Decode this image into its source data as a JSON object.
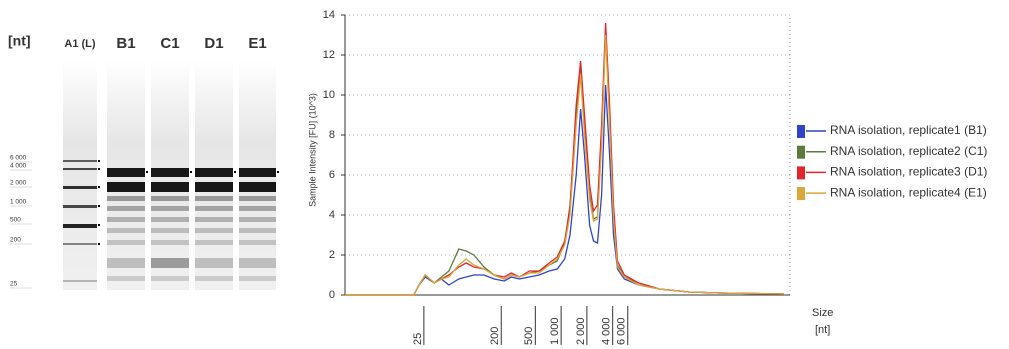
{
  "gel": {
    "unit": "[nt]",
    "lanes": [
      "A1 (L)",
      "B1",
      "C1",
      "D1",
      "E1"
    ],
    "ladder": [
      "6 000",
      "4 000",
      "2 000",
      "1 000",
      "500",
      "200",
      "25"
    ]
  },
  "chart_data": {
    "type": "line",
    "y_label": "Sample Intensity [FU] (10^3)",
    "x_label": "Size",
    "x_unit": "[nt]",
    "log_x": true,
    "grid": true,
    "legend": "right",
    "xlim": [
      3,
      470000
    ],
    "ylim": [
      0,
      14
    ],
    "xticks": [
      25,
      200,
      500,
      {
        "value": 1000,
        "label": "1 000"
      },
      {
        "value": 2000,
        "label": "2 000"
      },
      {
        "value": 4000,
        "label": "4 000"
      },
      {
        "value": 6000,
        "label": "6 000"
      }
    ],
    "yticks": [
      0,
      2,
      4,
      6,
      8,
      10,
      12,
      14
    ],
    "x": [
      3,
      19,
      22,
      26,
      33,
      40,
      49,
      64,
      78,
      96,
      126,
      165,
      217,
      262,
      326,
      425,
      555,
      725,
      900,
      1100,
      1270,
      1500,
      1690,
      1875,
      2150,
      2390,
      2660,
      2970,
      3310,
      3680,
      4090,
      4550,
      5470,
      8040,
      14000,
      31000,
      72000,
      400000
    ],
    "series": [
      {
        "name": "RNA isolation, replicate1 (B1)",
        "color": "#2f44c8",
        "values": [
          0,
          0,
          0.5,
          0.9,
          0.6,
          0.8,
          0.5,
          0.8,
          0.9,
          1.0,
          1.0,
          0.8,
          0.7,
          0.9,
          0.8,
          0.9,
          1.0,
          1.2,
          1.3,
          1.8,
          3.0,
          6.0,
          9.3,
          7.0,
          3.5,
          2.7,
          2.6,
          5.0,
          10.5,
          7.0,
          3.0,
          1.3,
          0.8,
          0.5,
          0.3,
          0.15,
          0.1,
          0.05
        ]
      },
      {
        "name": "RNA isolation, replicate2 (C1)",
        "color": "#5b7a3c",
        "values": [
          0,
          0,
          0.5,
          1.0,
          0.6,
          0.9,
          1.2,
          2.3,
          2.2,
          2.0,
          1.4,
          1.0,
          0.8,
          1.0,
          0.9,
          1.1,
          1.2,
          1.5,
          1.7,
          2.6,
          4.5,
          9.0,
          11.6,
          8.5,
          5.0,
          3.8,
          3.9,
          8.0,
          13.3,
          9.0,
          4.0,
          1.5,
          0.9,
          0.6,
          0.3,
          0.15,
          0.1,
          0.05
        ]
      },
      {
        "name": "RNA isolation, replicate3 (D1)",
        "color": "#e3262b",
        "values": [
          0,
          0,
          0.5,
          1.0,
          0.6,
          0.8,
          1.0,
          1.4,
          1.6,
          1.4,
          1.3,
          1.0,
          0.9,
          1.1,
          0.9,
          1.2,
          1.2,
          1.6,
          1.9,
          2.7,
          4.3,
          9.5,
          11.7,
          9.0,
          5.5,
          4.2,
          4.5,
          8.5,
          13.6,
          9.5,
          4.5,
          1.7,
          1.0,
          0.6,
          0.3,
          0.15,
          0.1,
          0.05
        ]
      },
      {
        "name": "RNA isolation, replicate4 (E1)",
        "color": "#dba63a",
        "values": [
          0,
          0,
          0.5,
          1.0,
          0.6,
          0.8,
          0.9,
          1.5,
          1.8,
          1.5,
          1.3,
          1.0,
          0.8,
          1.0,
          0.9,
          1.1,
          1.1,
          1.5,
          1.8,
          2.5,
          4.0,
          8.5,
          11.0,
          8.0,
          4.8,
          3.7,
          3.8,
          7.5,
          13.0,
          8.5,
          3.8,
          1.4,
          0.9,
          0.5,
          0.3,
          0.15,
          0.1,
          0.05
        ]
      }
    ]
  }
}
